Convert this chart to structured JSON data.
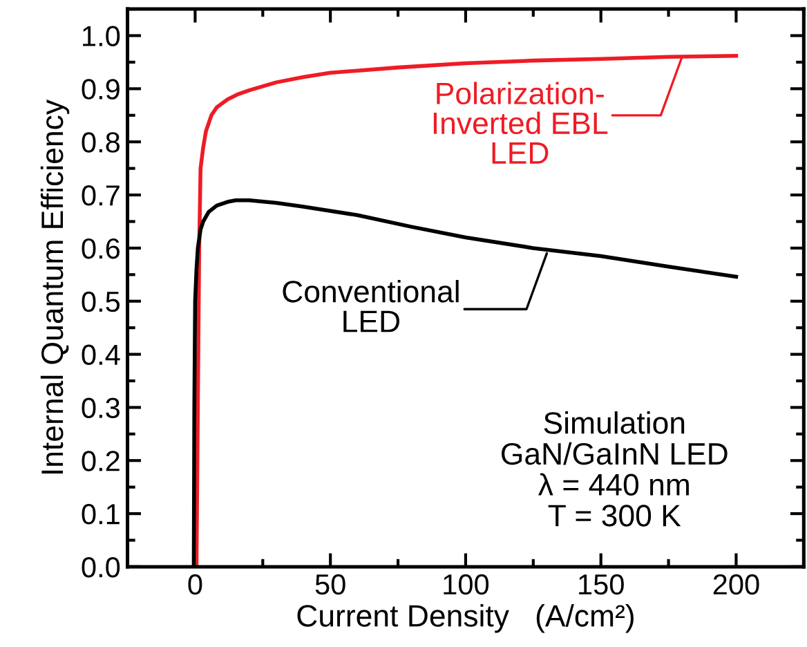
{
  "chart_data": {
    "type": "line",
    "xlabel": "Current Density   (A/cm²)",
    "ylabel": "Internal Quantum Efficiency",
    "xlim": [
      -25,
      225
    ],
    "ylim": [
      0,
      1.05
    ],
    "xticks": [
      0,
      50,
      100,
      150,
      200
    ],
    "yticks": [
      {
        "value": 0,
        "label": "0.0"
      },
      0.1,
      0.2,
      0.3,
      0.4,
      0.5,
      0.6,
      0.7,
      0.8,
      0.9,
      {
        "value": 1,
        "label": "1.0"
      }
    ],
    "grid": false,
    "legend": false,
    "marker": "none",
    "line_style": "solid",
    "series": [
      {
        "color": "#ee1c25",
        "x": [
          0.5,
          1,
          1.5,
          2,
          3,
          4,
          6,
          8,
          12,
          16,
          20,
          30,
          40,
          50,
          75,
          100,
          125,
          150,
          175,
          200
        ],
        "values": [
          0.0,
          0.3,
          0.6,
          0.75,
          0.79,
          0.82,
          0.85,
          0.865,
          0.88,
          0.89,
          0.897,
          0.912,
          0.922,
          0.93,
          0.94,
          0.948,
          0.953,
          0.956,
          0.96,
          0.962
        ]
      },
      {
        "color": "#000000",
        "x": [
          -0.5,
          -0.3,
          0,
          0.5,
          1,
          2,
          3,
          5,
          8,
          12,
          15,
          20,
          30,
          40,
          60,
          80,
          100,
          125,
          150,
          175,
          200
        ],
        "values": [
          0.0,
          0.3,
          0.5,
          0.56,
          0.6,
          0.635,
          0.65,
          0.668,
          0.68,
          0.687,
          0.69,
          0.69,
          0.685,
          0.678,
          0.662,
          0.64,
          0.62,
          0.6,
          0.585,
          0.565,
          0.546
        ]
      }
    ],
    "annotations": [
      {
        "text": "Polarization-\nInverted EBL\nLED",
        "x": 180,
        "y": 0.96
      },
      {
        "text": "Conventional\nLED",
        "x": 130,
        "y": 0.59
      },
      "Simulation\nGaN/GaInN LED\nλ = 440 nm\nT = 300 K"
    ]
  }
}
